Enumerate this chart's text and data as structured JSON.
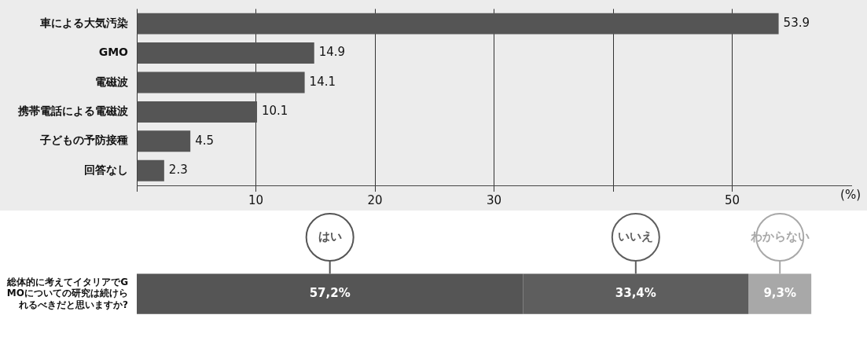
{
  "chart_data": [
    {
      "type": "bar",
      "orientation": "horizontal",
      "categories": [
        "車による大気汚染",
        "GMO",
        "電磁波",
        "携帯電話による電磁波",
        "子どもの予防接種",
        "回答なし"
      ],
      "values": [
        53.9,
        14.9,
        14.1,
        10.1,
        4.5,
        2.3
      ],
      "color": "#555555",
      "xlim": [
        0,
        60
      ],
      "xticks": [
        {
          "value": 0,
          "label": null
        },
        10,
        20,
        30,
        {
          "value": 40,
          "label": null
        },
        50
      ],
      "xlabel": "(%)",
      "grid": "x",
      "data_labels": true,
      "legend": false
    },
    {
      "type": "bar",
      "orientation": "horizontal",
      "stacked": true,
      "categories": [
        "総体的に考えてイタリアでGMOについての研究は続けられるべきだと思いますか?"
      ],
      "series": [
        {
          "name": "はい",
          "color": "#555555",
          "values": [
            57.2
          ],
          "value_labels": [
            "57,2%"
          ]
        },
        {
          "name": "いいえ",
          "color": "#5e5e5e",
          "values": [
            33.4
          ],
          "value_labels": [
            "33,4%"
          ]
        },
        {
          "name": "わからない",
          "color": "#a8a8a8",
          "values": [
            9.3
          ],
          "value_labels": [
            "9,3%"
          ]
        }
      ],
      "xlim": [
        0,
        100
      ],
      "legend": false
    }
  ]
}
